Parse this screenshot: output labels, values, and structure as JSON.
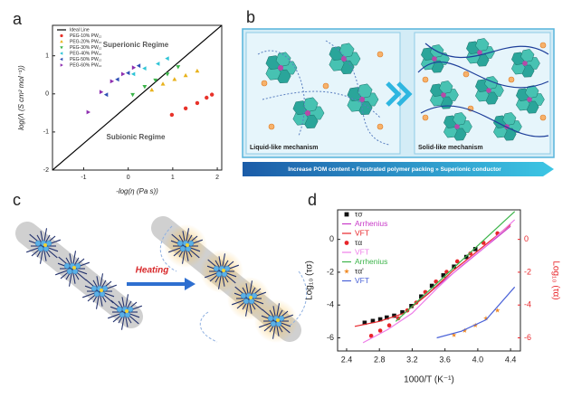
{
  "panels": [
    "a",
    "b",
    "c",
    "d"
  ],
  "chart_data": [
    {
      "type": "scatter",
      "x_label": "-log(η (Pa s))",
      "y_label": "log(Λ (S cm² mol⁻¹))",
      "xlim": [
        -1.7,
        2.1
      ],
      "xticks": [
        -1,
        0,
        1,
        2
      ],
      "ylim": [
        -2,
        1.8
      ],
      "yticks": [
        -2,
        -1,
        0,
        1
      ],
      "legend": "upper left",
      "annotations": [
        "Superionic Regime",
        "Subionic Regime"
      ],
      "series": [
        {
          "name": "Ideal Line",
          "color": "#000000",
          "line": true,
          "x": [
            -1.7,
            2.1
          ],
          "values": [
            -2,
            1.8
          ]
        },
        {
          "name": "PEG-10% PW₁₂",
          "color": "#e8322a",
          "marker": "circle",
          "x": [
            0.98,
            1.29,
            1.55,
            1.76,
            1.88
          ],
          "values": [
            -0.55,
            -0.38,
            -0.24,
            -0.1,
            -0.02
          ]
        },
        {
          "name": "PEG-20% PW₁₂",
          "color": "#e8b21c",
          "marker": "triangle-up",
          "x": [
            0.53,
            0.78,
            1.04,
            1.29,
            1.55
          ],
          "values": [
            0.1,
            0.26,
            0.38,
            0.48,
            0.6
          ]
        },
        {
          "name": "PEG-30% PW₁₂",
          "color": "#3cb44a",
          "marker": "triangle-down",
          "x": [
            0.1,
            0.37,
            0.61,
            0.88,
            1.12
          ],
          "values": [
            -0.02,
            0.19,
            0.36,
            0.52,
            0.71
          ]
        },
        {
          "name": "PEG-40% PW₁₂",
          "color": "#2ec4d6",
          "marker": "triangle-left",
          "x": [
            0.12,
            0.37,
            0.67,
            0.88
          ],
          "values": [
            0.52,
            0.67,
            0.79,
            0.93
          ]
        },
        {
          "name": "PEG-50% PW₁₂",
          "color": "#2f4fb5",
          "marker": "triangle-left",
          "x": [
            -0.49,
            -0.24,
            0,
            0.24
          ],
          "values": [
            -0.02,
            0.38,
            0.55,
            0.74
          ]
        },
        {
          "name": "PEG-60% PW₁₂",
          "color": "#8e2fb0",
          "marker": "triangle-right",
          "x": [
            -0.9,
            -0.61,
            -0.37,
            -0.12,
            0.12
          ],
          "values": [
            -0.48,
            0.05,
            0.33,
            0.52,
            0.69
          ]
        }
      ]
    },
    {
      "type": "scatter",
      "x_label": "1000/T (K⁻¹)",
      "y_label": "Log₁₀ (τσ)",
      "y2_label": "Log₁₀ (τα)",
      "y2_color": "#e8252a",
      "xlim": [
        2.29,
        4.52
      ],
      "xticks": [
        2.4,
        2.8,
        3.2,
        3.6,
        {
          "value": 4,
          "label": "4.0"
        },
        4.4
      ],
      "ylim": [
        -6.8,
        1.8
      ],
      "yticks": [
        0,
        -2,
        -4,
        -6
      ],
      "y2lim": [
        -6.8,
        1.8
      ],
      "y2ticks": [
        0,
        -2,
        -4,
        -6
      ],
      "legend": "upper left",
      "series": [
        {
          "name": "τσ",
          "color": "#111111",
          "marker": "square",
          "x": [
            2.62,
            2.72,
            2.81,
            2.89,
            2.98,
            3.08,
            3.19,
            3.31,
            3.44,
            3.58,
            3.71,
            3.86,
            3.97
          ],
          "values": [
            -5.08,
            -4.97,
            -4.87,
            -4.76,
            -4.65,
            -4.44,
            -4.06,
            -3.48,
            -2.83,
            -2.19,
            -1.66,
            -1.07,
            -0.59
          ]
        },
        {
          "name": "Arrhenius",
          "color": "#c83ac8",
          "line": true,
          "x": [
            3.2,
            4.4
          ],
          "values": [
            -4.1,
            0.8
          ]
        },
        {
          "name": "VFT",
          "color": "#e8252a",
          "line": true,
          "x": [
            2.5,
            2.8,
            3.1,
            3.4,
            3.7,
            4.0,
            4.4
          ],
          "values": [
            -5.3,
            -5.0,
            -4.5,
            -3.3,
            -1.9,
            -0.7,
            0.9
          ]
        },
        {
          "name": "τα",
          "color": "#e8252a",
          "marker": "circle",
          "axis": "y2",
          "x": [
            2.7,
            2.81,
            2.92,
            3.03,
            3.14,
            3.25,
            3.36,
            3.49,
            3.62,
            3.75,
            3.91,
            4.07,
            4.24
          ],
          "values": [
            -5.88,
            -5.56,
            -5.24,
            -4.81,
            -4.33,
            -3.85,
            -3.21,
            -2.57,
            -1.98,
            -1.34,
            -0.86,
            -0.21,
            0.37
          ]
        },
        {
          "name": "VFT",
          "color": "#ee7ee8",
          "line": true,
          "axis": "y2",
          "x": [
            2.6,
            2.9,
            3.2,
            3.5,
            3.8,
            4.1,
            4.45
          ],
          "values": [
            -6.3,
            -5.5,
            -4.5,
            -3.0,
            -1.6,
            -0.4,
            1.2
          ]
        },
        {
          "name": "Arrhenius",
          "color": "#3cb44a",
          "line": true,
          "axis": "y2",
          "x": [
            3.0,
            4.45
          ],
          "values": [
            -5.0,
            1.7
          ]
        },
        {
          "name": "τα'",
          "color": "#f08a24",
          "marker": "star",
          "axis": "y2",
          "x": [
            3.71,
            3.84,
            3.97,
            4.1,
            4.24
          ],
          "values": [
            -5.83,
            -5.56,
            -5.24,
            -4.81,
            -4.33
          ]
        },
        {
          "name": "VFT",
          "color": "#4a62d8",
          "line": true,
          "axis": "y2",
          "x": [
            3.5,
            3.8,
            4.1,
            4.45
          ],
          "values": [
            -6.0,
            -5.6,
            -4.9,
            -2.9
          ]
        }
      ]
    }
  ],
  "diagram_b": {
    "left_label": "Liquid-like mechanism",
    "right_label": "Solid-like mechanism",
    "banner": "Increase POM content » Frustrated polymer packing » Superionic conductor"
  },
  "diagram_c": {
    "arrow_label": "Heating"
  }
}
